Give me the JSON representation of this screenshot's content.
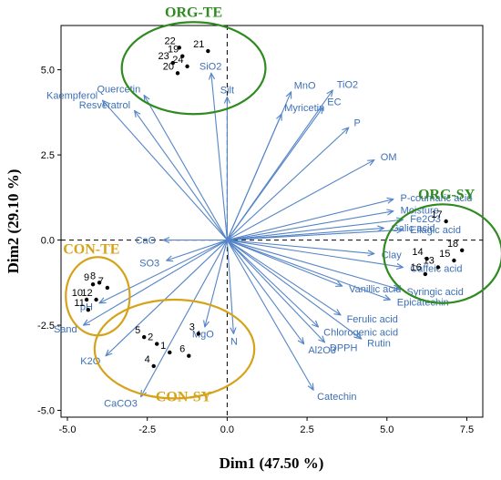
{
  "chart_data": {
    "type": "scatter",
    "subtype": "pca-biplot",
    "xlabel": "Dim1 (47.50 %)",
    "ylabel": "Dim2 (29.10 %)",
    "xlim": [
      -5.2,
      8.0
    ],
    "ylim": [
      -5.2,
      6.3
    ],
    "xticks": [
      -5.0,
      -2.5,
      0.0,
      2.5,
      5.0,
      7.5
    ],
    "xtick_labels": [
      "-5.0",
      "-2.5",
      "0.0",
      "2.5",
      "5.0",
      "7.5"
    ],
    "yticks": [
      -5.0,
      -2.5,
      0.0,
      2.5,
      5.0
    ],
    "ytick_labels": [
      "-5.0",
      "-2.5",
      "0.0",
      "2.5",
      "5.0"
    ],
    "grid": false,
    "reference_lines": "dashed at x=0 and y=0",
    "colors": {
      "arrow": "#5585c8",
      "label": "#3d6fb5",
      "org": "#2e8b1f",
      "con": "#d6a21a"
    },
    "observations": [
      {
        "label": "1",
        "x": -1.8,
        "y": -3.3
      },
      {
        "label": "2",
        "x": -2.2,
        "y": -3.05
      },
      {
        "label": "3",
        "x": -0.9,
        "y": -2.75
      },
      {
        "label": "4",
        "x": -2.3,
        "y": -3.7
      },
      {
        "label": "5",
        "x": -2.6,
        "y": -2.85
      },
      {
        "label": "6",
        "x": -1.2,
        "y": -3.4
      },
      {
        "label": "7",
        "x": -3.75,
        "y": -1.4
      },
      {
        "label": "8",
        "x": -4.0,
        "y": -1.25
      },
      {
        "label": "9",
        "x": -4.2,
        "y": -1.3
      },
      {
        "label": "10",
        "x": -4.4,
        "y": -1.75
      },
      {
        "label": "11",
        "x": -4.35,
        "y": -2.05
      },
      {
        "label": "12",
        "x": -4.1,
        "y": -1.75
      },
      {
        "label": "13",
        "x": 6.6,
        "y": -0.8
      },
      {
        "label": "14",
        "x": 6.25,
        "y": -0.55
      },
      {
        "label": "15",
        "x": 7.1,
        "y": -0.6
      },
      {
        "label": "16",
        "x": 6.2,
        "y": -1.0
      },
      {
        "label": "17",
        "x": 6.85,
        "y": 0.55
      },
      {
        "label": "18",
        "x": 7.35,
        "y": -0.3
      },
      {
        "label": "19",
        "x": -1.4,
        "y": 5.4
      },
      {
        "label": "20",
        "x": -1.55,
        "y": 4.9
      },
      {
        "label": "21",
        "x": -0.6,
        "y": 5.55
      },
      {
        "label": "22",
        "x": -1.5,
        "y": 5.65
      },
      {
        "label": "23",
        "x": -1.7,
        "y": 5.2
      },
      {
        "label": "24",
        "x": -1.25,
        "y": 5.1
      }
    ],
    "variables": [
      {
        "name": "Kaempferol",
        "x": -3.9,
        "y": 4.1
      },
      {
        "name": "Quercetin",
        "x": -2.6,
        "y": 4.25
      },
      {
        "name": "Resveratrol",
        "x": -2.9,
        "y": 3.8
      },
      {
        "name": "SiO2",
        "x": -0.5,
        "y": 4.9
      },
      {
        "name": "Silt",
        "x": 0.0,
        "y": 4.2
      },
      {
        "name": "MnO",
        "x": 2.0,
        "y": 4.35
      },
      {
        "name": "Myricetin",
        "x": 1.7,
        "y": 3.7
      },
      {
        "name": "TiO2",
        "x": 3.3,
        "y": 4.4
      },
      {
        "name": "EC",
        "x": 3.0,
        "y": 3.9
      },
      {
        "name": "P",
        "x": 3.8,
        "y": 3.3
      },
      {
        "name": "OM",
        "x": 4.6,
        "y": 2.35
      },
      {
        "name": "P-coumaric acid",
        "x": 5.2,
        "y": 1.2
      },
      {
        "name": "Moisture",
        "x": 5.2,
        "y": 0.85
      },
      {
        "name": "Fe2O3",
        "x": 5.5,
        "y": 0.6
      },
      {
        "name": "Galic acid",
        "x": 4.9,
        "y": 0.35
      },
      {
        "name": "Ellagic acid",
        "x": 5.5,
        "y": 0.3
      },
      {
        "name": "Clay",
        "x": 4.6,
        "y": -0.4
      },
      {
        "name": "Caffeic acid",
        "x": 5.5,
        "y": -0.8
      },
      {
        "name": "Syringic acid",
        "x": 5.4,
        "y": -1.45
      },
      {
        "name": "Vanillic acid",
        "x": 3.6,
        "y": -1.35
      },
      {
        "name": "Epicatechin",
        "x": 5.1,
        "y": -1.75
      },
      {
        "name": "Ferulic acid",
        "x": 3.55,
        "y": -2.2
      },
      {
        "name": "Chlorogenic acid",
        "x": 2.85,
        "y": -2.55
      },
      {
        "name": "Rutin",
        "x": 4.2,
        "y": -2.9
      },
      {
        "name": "Al2O3",
        "x": 2.4,
        "y": -3.05
      },
      {
        "name": "DPPH",
        "x": 3.05,
        "y": -3.0
      },
      {
        "name": "Catechin",
        "x": 2.7,
        "y": -4.4
      },
      {
        "name": "CaO",
        "x": -2.0,
        "y": 0.0
      },
      {
        "name": "SO3",
        "x": -1.9,
        "y": -0.6
      },
      {
        "name": "pH",
        "x": -4.0,
        "y": -1.85
      },
      {
        "name": "Sand",
        "x": -4.5,
        "y": -2.5
      },
      {
        "name": "K2O",
        "x": -3.8,
        "y": -3.4
      },
      {
        "name": "CaCO3",
        "x": -2.7,
        "y": -4.6
      },
      {
        "name": "MgO",
        "x": -0.7,
        "y": -2.55
      },
      {
        "name": "N",
        "x": 0.2,
        "y": -2.75
      }
    ],
    "groups": [
      {
        "name": "ORG-TE",
        "color": "org",
        "center": [
          -1.05,
          5.05
        ],
        "rx": 2.25,
        "ry": 1.35
      },
      {
        "name": "ORG-SY",
        "color": "org",
        "center": [
          6.75,
          -0.4
        ],
        "rx": 1.85,
        "ry": 1.45
      },
      {
        "name": "CON-TE",
        "color": "con",
        "center": [
          -4.05,
          -1.65
        ],
        "rx": 1.0,
        "ry": 1.15
      },
      {
        "name": "CON-SY",
        "color": "con",
        "center": [
          -1.65,
          -3.2
        ],
        "rx": 2.5,
        "ry": 1.45
      }
    ]
  }
}
